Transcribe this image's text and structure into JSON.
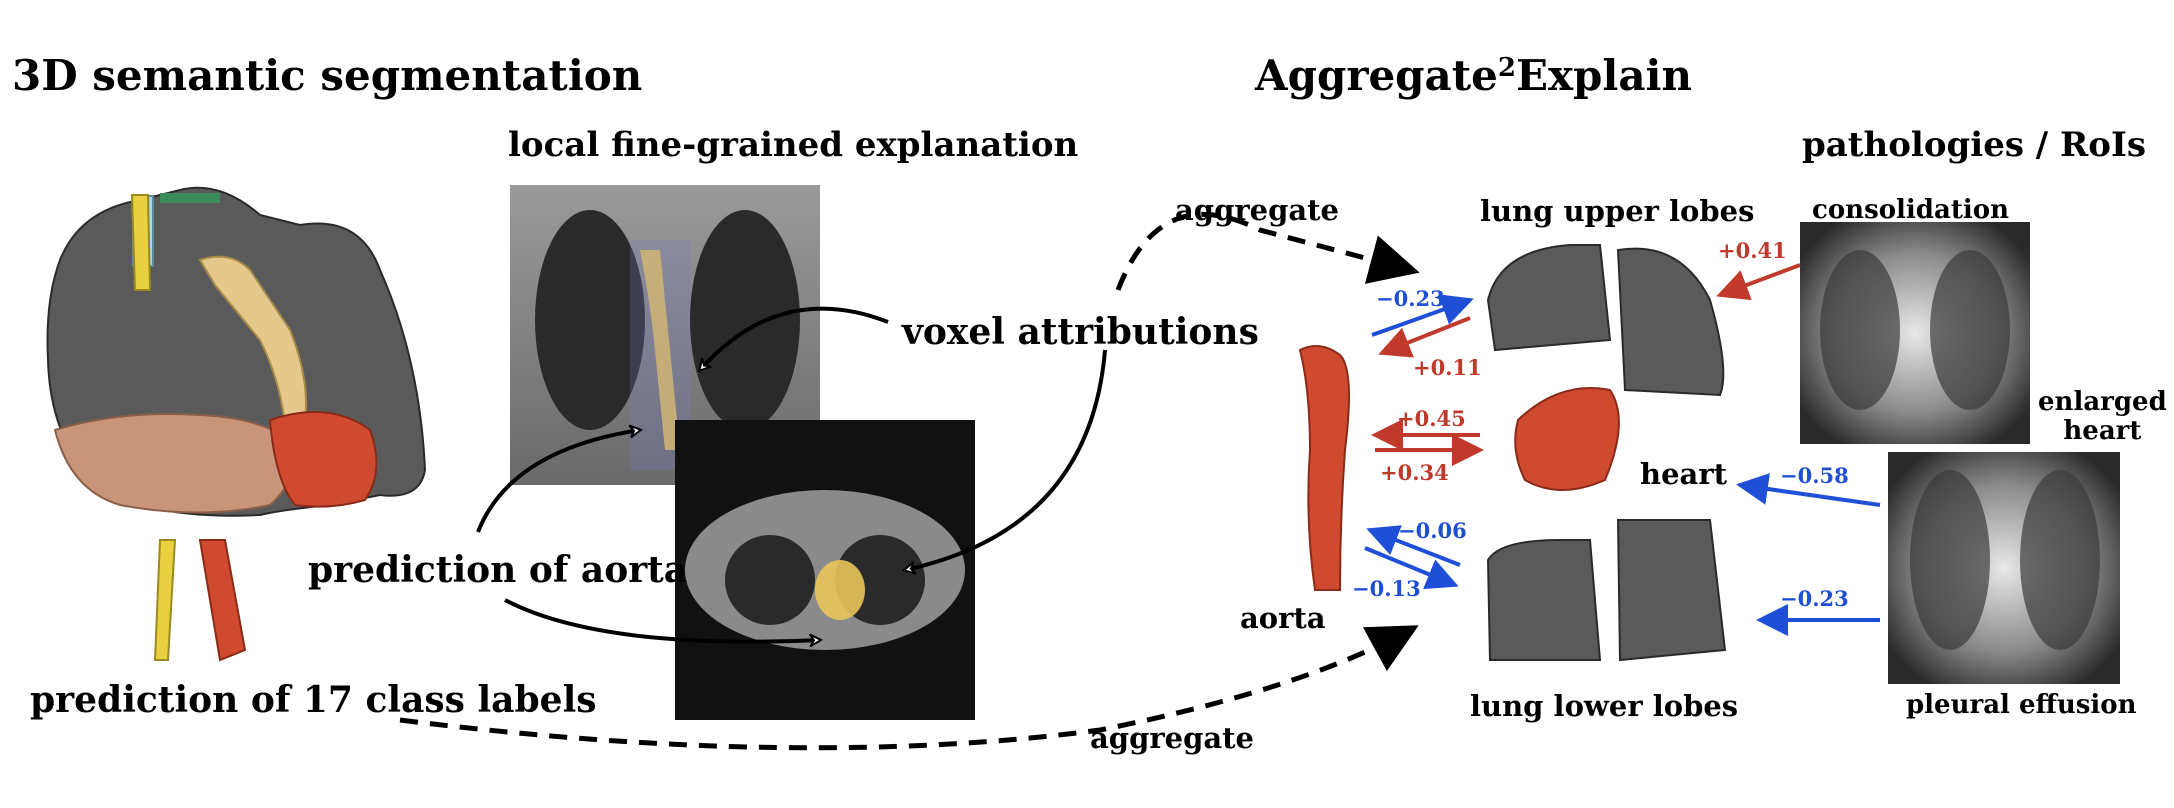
{
  "titles": {
    "segmentation": "3D semantic segmentation",
    "method_prefix": "Aggregate",
    "method_sup": "2",
    "method_suffix": "Explain",
    "local": "local fine-grained explanation",
    "pathologies": "pathologies / RoIs"
  },
  "labels": {
    "voxel_attributions": "voxel attributions",
    "prediction_aorta": "prediction of aorta",
    "prediction_17": "prediction of 17 class labels",
    "aggregate_top": "aggregate",
    "aggregate_bottom": "aggregate",
    "lung_upper": "lung upper lobes",
    "lung_lower": "lung lower lobes",
    "heart": "heart",
    "aorta": "aorta",
    "consolidation": "consolidation",
    "enlarged_heart": "enlarged\nheart",
    "pleural_effusion": "pleural effusion"
  },
  "values": {
    "aorta_to_upper": "−0.23",
    "upper_to_aorta": "+0.11",
    "heart_to_aorta": "+0.45",
    "aorta_to_heart": "+0.34",
    "lower_to_aorta": "−0.06",
    "aorta_to_lower": "−0.13",
    "consolidation_to_upper": "+0.41",
    "enlarged_heart_to_heart": "−0.58",
    "pleural_to_lower": "−0.23"
  },
  "colors": {
    "positive": "#c0392b",
    "negative": "#1f4fd6",
    "lung": "#555555",
    "aorta": "#d04a30",
    "trachea": "#e5c98c",
    "liver": "#c9957a"
  }
}
